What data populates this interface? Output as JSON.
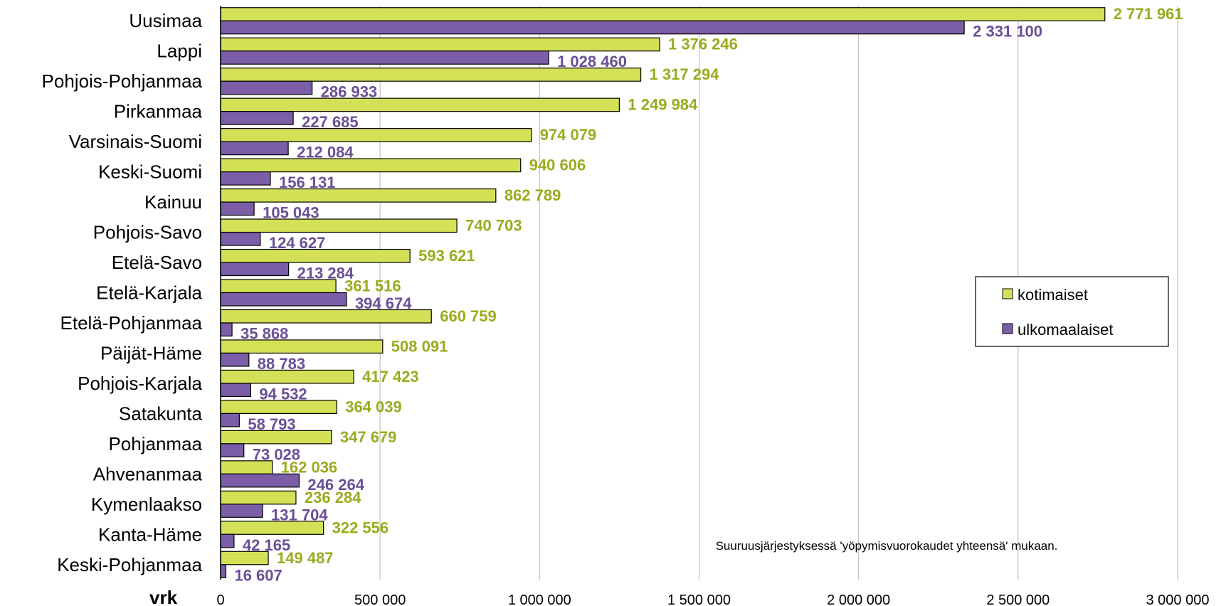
{
  "chart_data": {
    "type": "bar",
    "orientation": "horizontal",
    "unit_label": "vrk",
    "note": "Suuruusjärjestyksessä 'yöpymisvuorokaudet yhteensä' mukaan.",
    "categories": [
      "Uusimaa",
      "Lappi",
      "Pohjois-Pohjanmaa",
      "Pirkanmaa",
      "Varsinais-Suomi",
      "Keski-Suomi",
      "Kainuu",
      "Pohjois-Savo",
      "Etelä-Savo",
      "Etelä-Karjala",
      "Etelä-Pohjanmaa",
      "Päijät-Häme",
      "Pohjois-Karjala",
      "Satakunta",
      "Pohjanmaa",
      "Ahvenanmaa",
      "Kymenlaakso",
      "Kanta-Häme",
      "Keski-Pohjanmaa"
    ],
    "series": [
      {
        "name": "kotimaiset",
        "color": "#d4e157",
        "label_color": "#9aab1e",
        "values": [
          2771961,
          1376246,
          1317294,
          1249984,
          974079,
          940606,
          862789,
          740703,
          593621,
          361516,
          660759,
          508091,
          417423,
          364039,
          347679,
          162036,
          236284,
          322556,
          149487
        ],
        "labels": [
          "2 771 961",
          "1 376 246",
          "1 317 294",
          "1 249 984",
          "974 079",
          "940 606",
          "862 789",
          "740 703",
          "593 621",
          "361 516",
          "660 759",
          "508 091",
          "417 423",
          "364 039",
          "347 679",
          "162 036",
          "236 284",
          "322 556",
          "149 487"
        ]
      },
      {
        "name": "ulkomaalaiset",
        "color": "#7b5ea7",
        "label_color": "#6a4f96",
        "values": [
          2331100,
          1028460,
          286933,
          227685,
          212084,
          156131,
          105043,
          124627,
          213284,
          394674,
          35868,
          88783,
          94532,
          58793,
          73028,
          246264,
          131704,
          42165,
          16607
        ],
        "labels": [
          "2 331 100",
          "1 028 460",
          "286 933",
          "227 685",
          "212 084",
          "156 131",
          "105 043",
          "124 627",
          "213 284",
          "394 674",
          "35 868",
          "88 783",
          "94 532",
          "58 793",
          "73 028",
          "246 264",
          "131 704",
          "42 165",
          "16 607"
        ]
      }
    ],
    "xlim": [
      0,
      3000000
    ],
    "xticks": [
      0,
      500000,
      1000000,
      1500000,
      2000000,
      2500000,
      3000000
    ],
    "xtick_labels": [
      "0",
      "500 000",
      "1 000 000",
      "1 500 000",
      "2 000 000",
      "2 500 000",
      "3 000 000"
    ],
    "grid": true,
    "legend": {
      "position": "right"
    }
  }
}
